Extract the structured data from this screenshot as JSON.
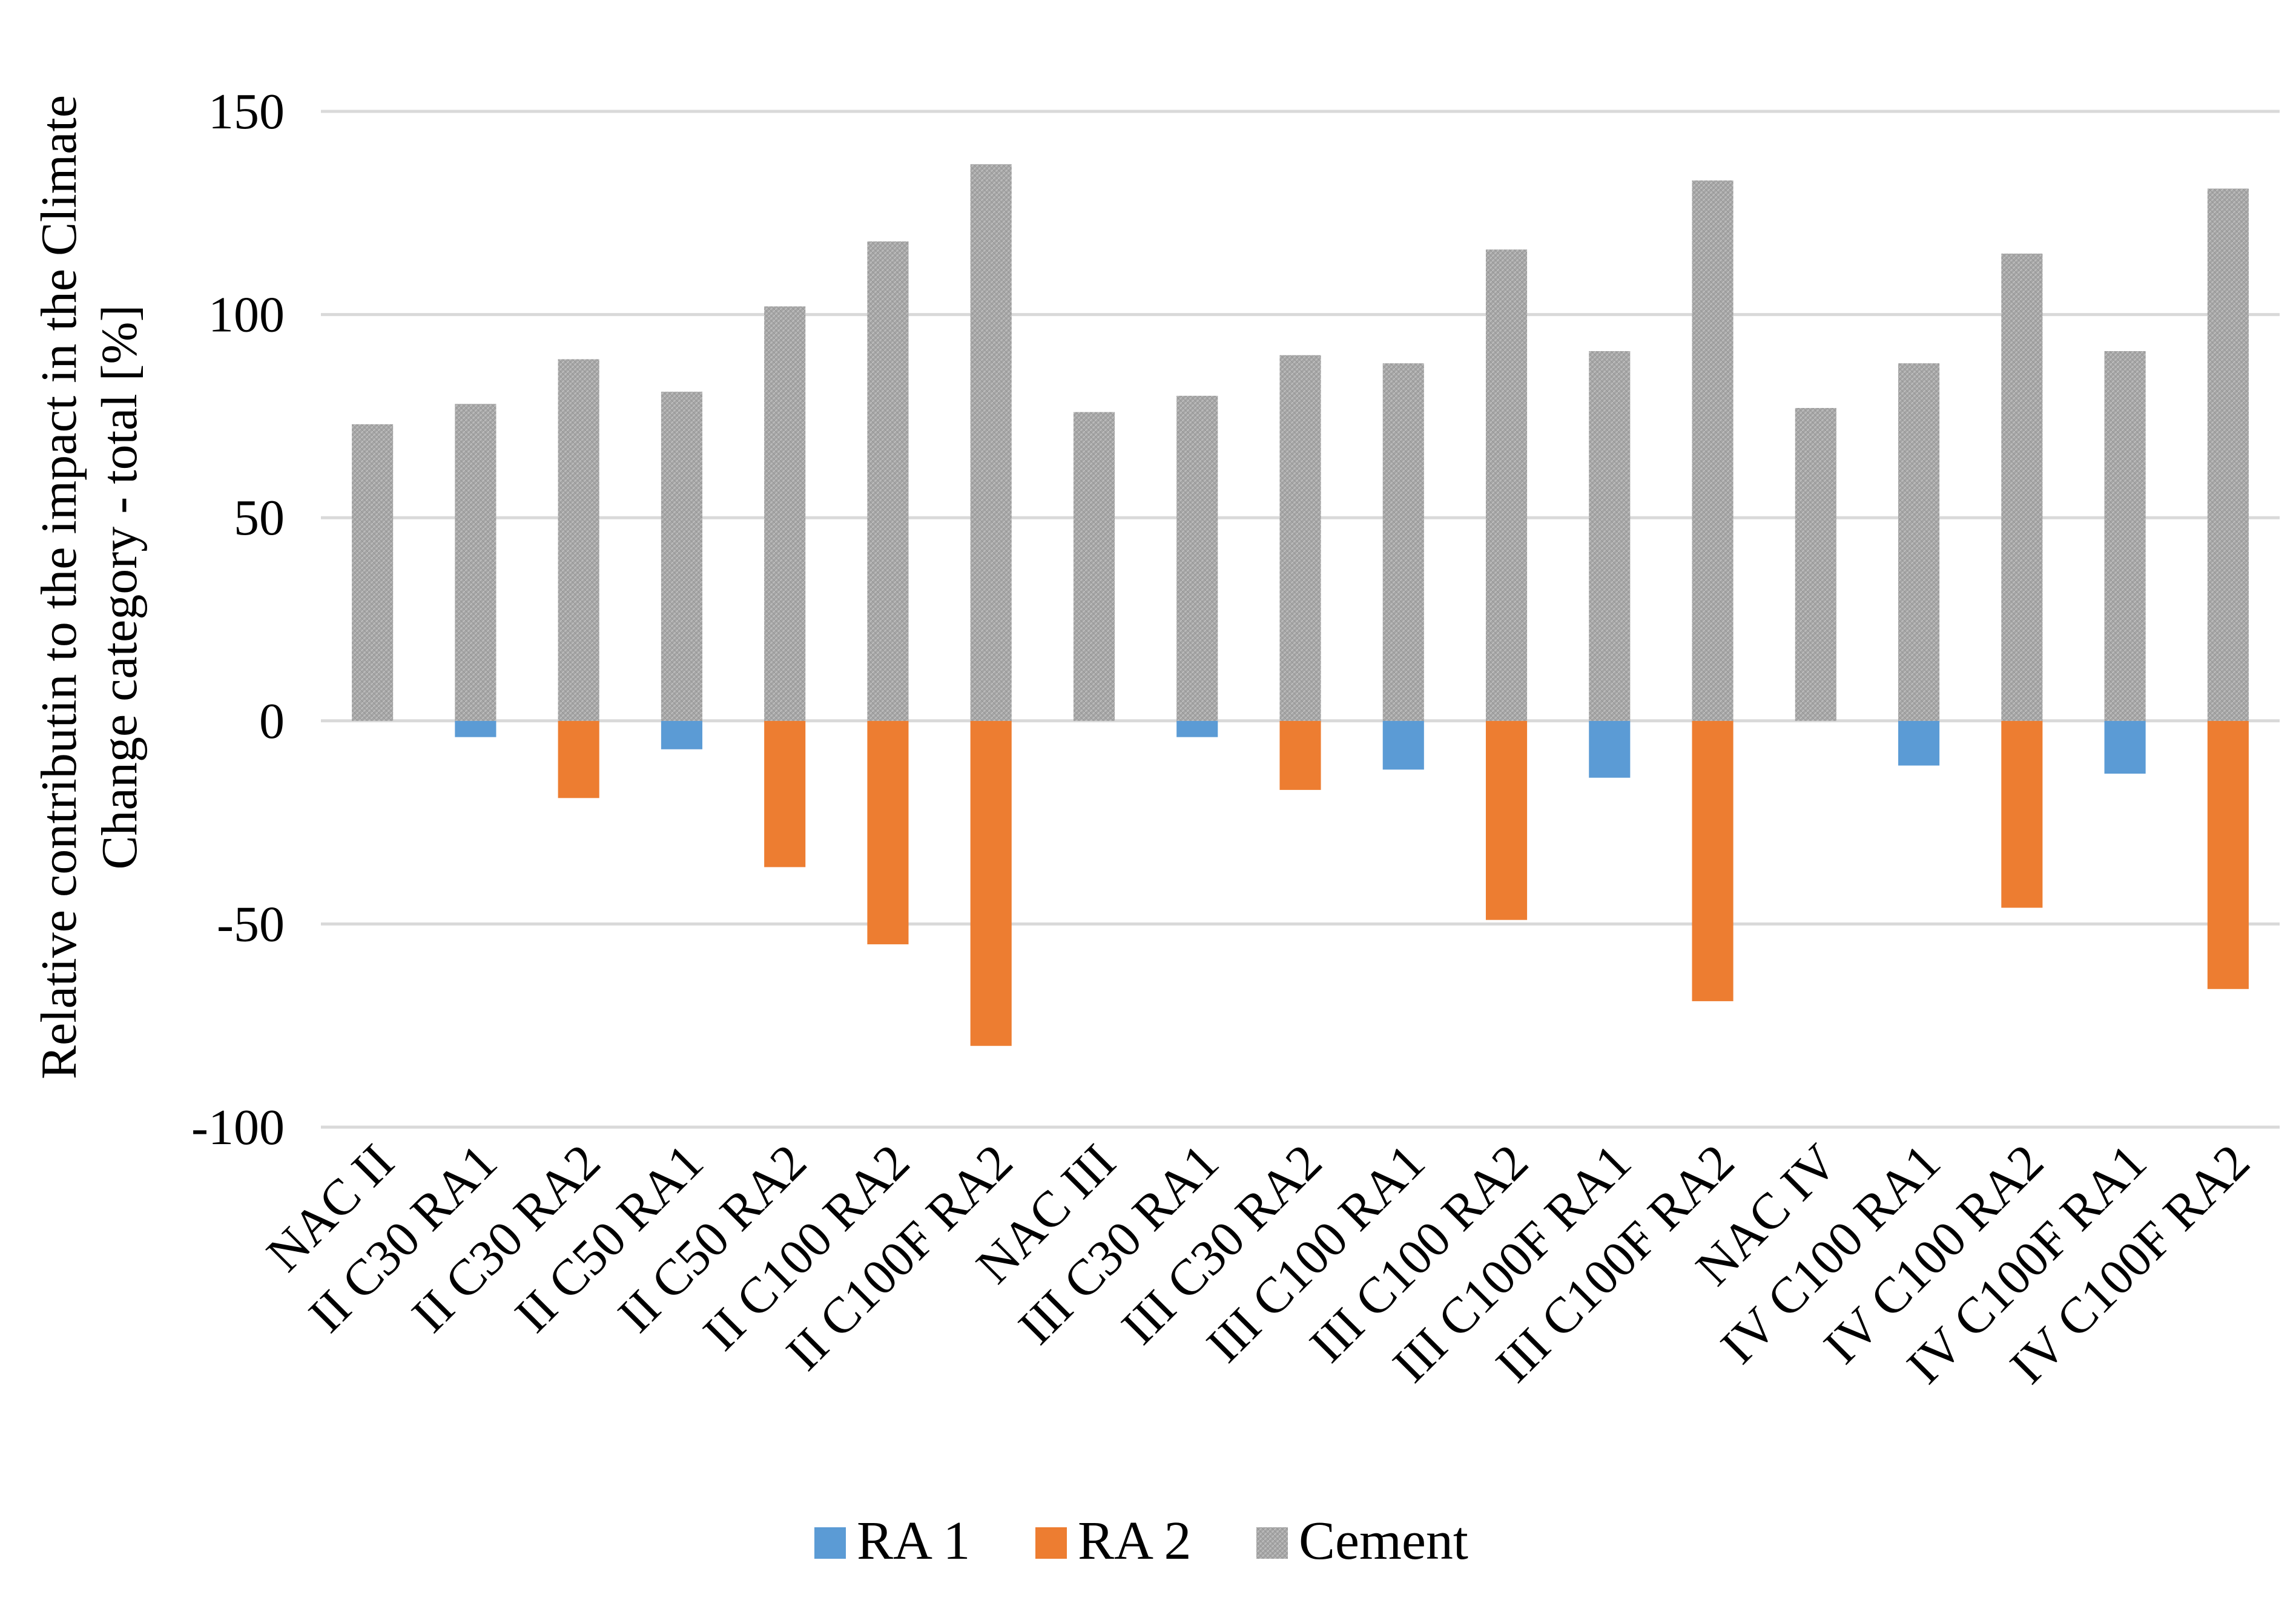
{
  "chart_data": {
    "type": "bar",
    "stacked": true,
    "title": "",
    "xlabel": "",
    "ylabel_lines": [
      "Relative  contributin to the impact in the Climate",
      "Change category - total [%]"
    ],
    "ylim": [
      -100,
      150
    ],
    "yticks": [
      150,
      100,
      50,
      0,
      -50,
      -100
    ],
    "grid": true,
    "legend_position": "bottom",
    "categories": [
      "NAC II",
      "II C30 RA1",
      "II C30 RA2",
      "II C50 RA1",
      "II C50 RA2",
      "II C100 RA2",
      "II C100F RA2",
      "NAC III",
      "III C30 RA1",
      "III C30 RA2",
      "III C100 RA1",
      "III C100 RA2",
      "III C100F RA1",
      "III C100F RA2",
      "NAC IV",
      "IV C100 RA1",
      "IV C100 RA2",
      "IV C100F RA1",
      "IV C100F RA2"
    ],
    "series": [
      {
        "name": "RA 1",
        "color": "#5b9bd5",
        "values": [
          0,
          -4,
          0,
          -7,
          0,
          0,
          0,
          0,
          -4,
          0,
          -12,
          0,
          -14,
          0,
          0,
          -11,
          0,
          -13,
          0
        ]
      },
      {
        "name": "RA 2",
        "color": "#ed7d31",
        "values": [
          0,
          0,
          -19,
          0,
          -36,
          -55,
          -80,
          0,
          0,
          -17,
          0,
          -49,
          0,
          -69,
          0,
          0,
          -46,
          0,
          -66
        ]
      },
      {
        "name": "Cement",
        "color": "#a5a5a5",
        "values": [
          73,
          78,
          89,
          81,
          102,
          118,
          137,
          76,
          80,
          90,
          88,
          116,
          91,
          133,
          77,
          88,
          115,
          91,
          131
        ]
      }
    ]
  }
}
